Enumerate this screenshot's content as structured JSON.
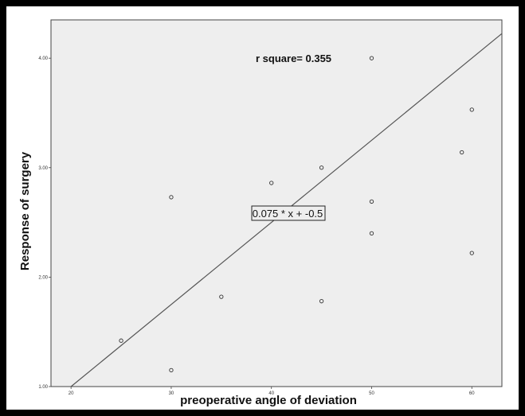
{
  "chart_data": {
    "type": "scatter",
    "xlabel": "preoperative angle of deviation",
    "ylabel": "Response of surgery",
    "xlim": [
      18,
      63
    ],
    "ylim": [
      1.0,
      4.35
    ],
    "x_ticks": [
      20,
      30,
      40,
      50,
      60
    ],
    "y_ticks": [
      1.0,
      2.0,
      3.0,
      4.0
    ],
    "x_tick_labels": [
      "20",
      "30",
      "40",
      "50",
      "60"
    ],
    "y_tick_labels": [
      "1.00",
      "2.00",
      "3.00",
      "4.00"
    ],
    "grid": false,
    "background": "#eeeeee",
    "points": [
      {
        "x": 25,
        "y": 1.42
      },
      {
        "x": 30,
        "y": 1.15
      },
      {
        "x": 30,
        "y": 2.73
      },
      {
        "x": 35,
        "y": 1.82
      },
      {
        "x": 40,
        "y": 2.86
      },
      {
        "x": 45,
        "y": 3.0
      },
      {
        "x": 45,
        "y": 1.78
      },
      {
        "x": 50,
        "y": 4.0
      },
      {
        "x": 50,
        "y": 2.69
      },
      {
        "x": 50,
        "y": 2.4
      },
      {
        "x": 59,
        "y": 3.14
      },
      {
        "x": 60,
        "y": 3.53
      },
      {
        "x": 60,
        "y": 2.22
      }
    ],
    "fit_line": {
      "slope": 0.075,
      "intercept": -0.5
    },
    "annotations": {
      "r_square": "r square= 0.355",
      "equation": "0.075 * x + -0.5"
    }
  }
}
